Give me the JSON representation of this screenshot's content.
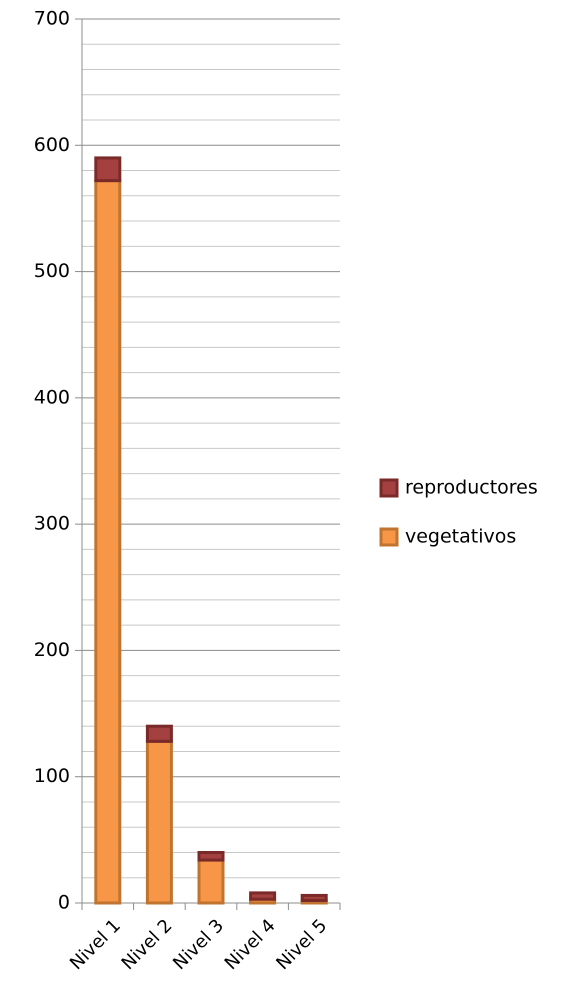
{
  "chart_data": {
    "type": "stacked_bar",
    "categories": [
      "Nivel 1",
      "Nivel 2",
      "Nivel 3",
      "Nivel 4",
      "Nivel 5"
    ],
    "series": [
      {
        "name": "vegetativos",
        "color": "#f79646",
        "values": [
          572,
          128,
          34,
          3,
          2
        ]
      },
      {
        "name": "reproductores",
        "color": "#a4403f",
        "values": [
          18,
          12,
          6,
          5,
          4
        ]
      }
    ],
    "ylim": [
      0,
      700
    ],
    "yticks": [
      0,
      100,
      200,
      300,
      400,
      500,
      600,
      700
    ],
    "minor_yticks": [
      20,
      40,
      60,
      80,
      120,
      140,
      160,
      180,
      220,
      240,
      260,
      280,
      320,
      340,
      360,
      380,
      420,
      440,
      460,
      480,
      520,
      540,
      560,
      580,
      620,
      640,
      660,
      680
    ],
    "grid": true,
    "legend": "right"
  }
}
